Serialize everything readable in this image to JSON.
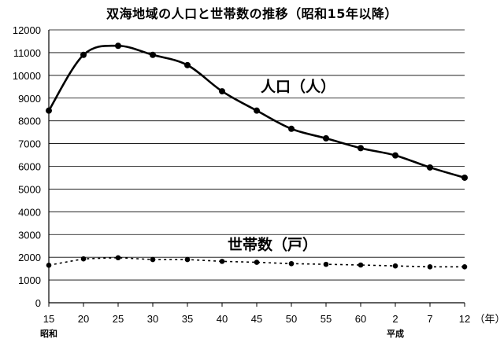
{
  "title": "双海地域の人口と世帯数の推移（昭和15年以降）",
  "chart_data": {
    "type": "line",
    "title": "双海地域の人口と世帯数の推移（昭和15年以降）",
    "categories": [
      "15",
      "20",
      "25",
      "30",
      "35",
      "40",
      "45",
      "50",
      "55",
      "60",
      "2",
      "7",
      "12"
    ],
    "era_labels": [
      {
        "category_index": 0,
        "label": "昭和"
      },
      {
        "category_index": 10,
        "label": "平成"
      }
    ],
    "xunit": "（年）",
    "ylim": [
      0,
      12000
    ],
    "yticks": [
      0,
      1000,
      2000,
      3000,
      4000,
      5000,
      6000,
      7000,
      8000,
      9000,
      10000,
      11000,
      12000
    ],
    "grid": true,
    "legend": "none",
    "series": [
      {
        "name": "人口（人）",
        "style": "solid",
        "label_anchor_index": 6,
        "values": [
          8450,
          10900,
          11300,
          10900,
          10450,
          9300,
          8450,
          7650,
          7230,
          6800,
          6480,
          5950,
          5500
        ]
      },
      {
        "name": "世帯数（戸）",
        "style": "dotted",
        "label_anchor_index": 6,
        "values": [
          1650,
          1930,
          1980,
          1900,
          1900,
          1820,
          1780,
          1720,
          1690,
          1660,
          1620,
          1580,
          1580
        ]
      }
    ]
  }
}
